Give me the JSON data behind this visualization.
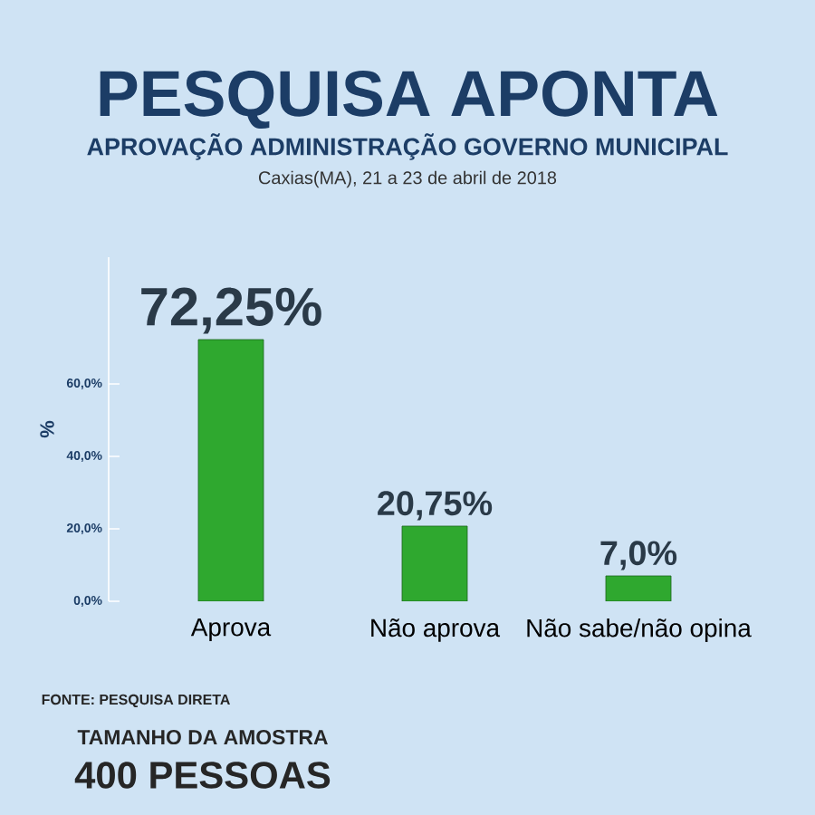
{
  "chart_data": {
    "type": "bar",
    "title": "PESQUISA APONTA",
    "subtitle": "APROVAÇÃO ADMINISTRAÇÃO GOVERNO MUNICIPAL",
    "ylabel": "%",
    "categories": [
      "Aprova",
      "Não aprova",
      "Não sabe/não opina"
    ],
    "values": [
      72.25,
      20.75,
      7.0
    ],
    "value_labels": [
      "72,25%",
      "20,75%",
      "7,0%"
    ],
    "color": "#2fa82f",
    "ylim": [
      0,
      95
    ],
    "yticks": [
      {
        "value": 0,
        "label": "0,0%"
      },
      {
        "value": 20,
        "label": "20,0%"
      },
      {
        "value": 40,
        "label": "40,0%"
      },
      {
        "value": 60,
        "label": "60,0%"
      }
    ],
    "annotations": [
      "Caxias(MA), 21 a 23 de abril de 2018",
      "FONTE: PESQUISA DIRETA",
      "TAMANHO DA AMOSTRA",
      "400 PESSOAS"
    ]
  }
}
